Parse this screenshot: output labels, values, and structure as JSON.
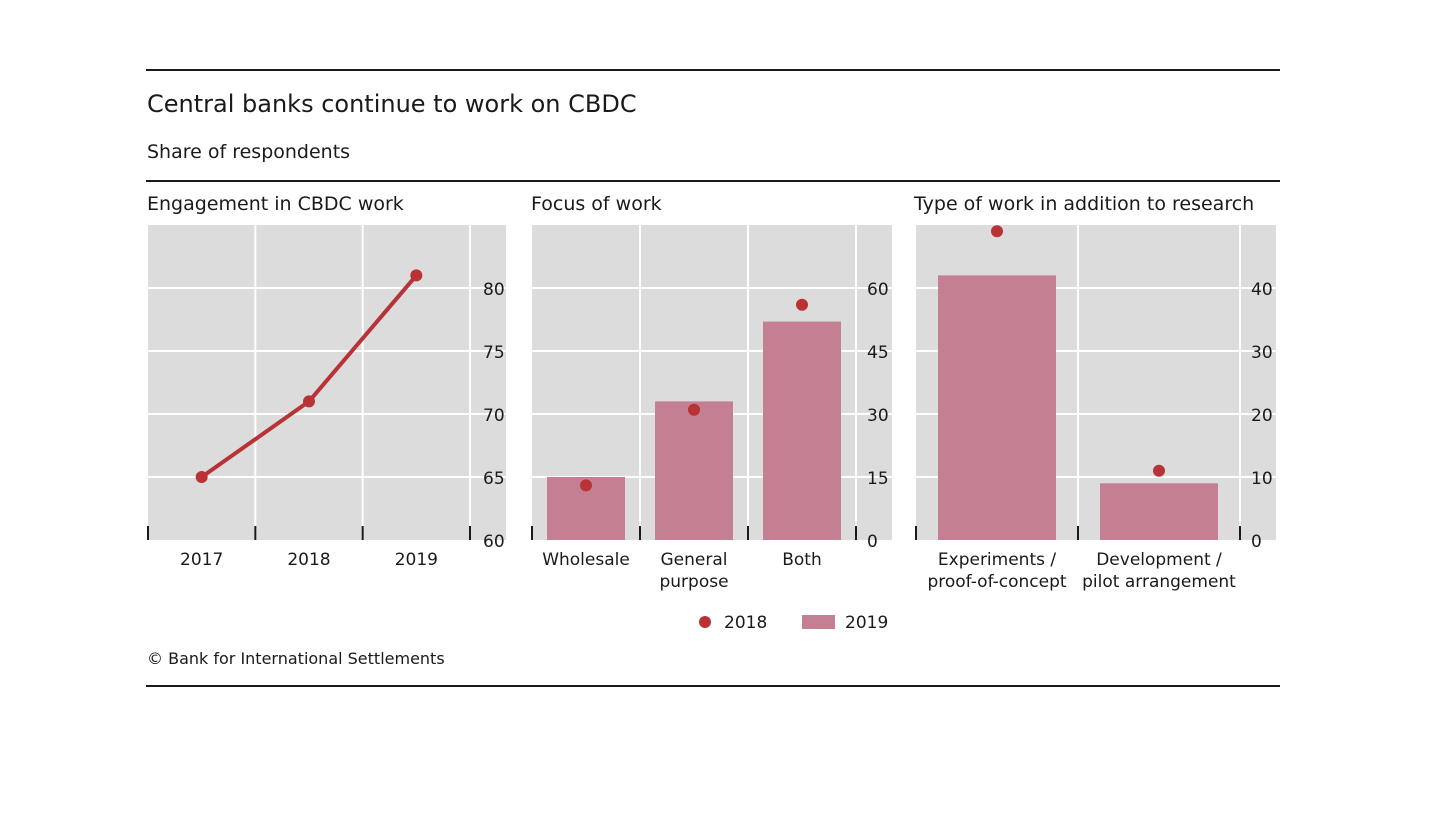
{
  "title": "Central banks continue to work on CBDC",
  "subtitle": "Share of respondents",
  "footer": "© Bank for International Settlements",
  "colors": {
    "plot_bg": "#dcdcdc",
    "grid": "#ffffff",
    "line_2018": "#b83236",
    "bar_2019": "#c47f92",
    "text": "#1a1a1a"
  },
  "legend": {
    "items": [
      {
        "label": "2018",
        "kind": "dot",
        "color": "#b83236"
      },
      {
        "label": "2019",
        "kind": "bar",
        "color": "#c47f92"
      }
    ],
    "placement": "bottom-center"
  },
  "chart_data": [
    {
      "type": "line",
      "title": "Engagement in CBDC work",
      "categories": [
        "2017",
        "2018",
        "2019"
      ],
      "series": [
        {
          "values": [
            65,
            71,
            81
          ],
          "color": "#b83236"
        }
      ],
      "ylim": [
        60,
        85
      ],
      "yticks": [
        60,
        65,
        70,
        75,
        80
      ],
      "ytick_labels": [
        "60",
        "65",
        "70",
        "75",
        "80"
      ],
      "grid": true,
      "yaxis": "right"
    },
    {
      "type": "bar",
      "title": "Focus of work",
      "categories": [
        [
          "Wholesale"
        ],
        [
          "General",
          "purpose"
        ],
        [
          "Both"
        ]
      ],
      "series": [
        {
          "name": "2019",
          "kind": "bar",
          "values": [
            15,
            33,
            52
          ],
          "color": "#c47f92"
        },
        {
          "name": "2018",
          "kind": "dot",
          "values": [
            13,
            31,
            56
          ],
          "color": "#b83236"
        }
      ],
      "ylim": [
        0,
        75
      ],
      "yticks": [
        0,
        15,
        30,
        45,
        60
      ],
      "ytick_labels": [
        "0",
        "15",
        "30",
        "45",
        "60"
      ],
      "grid": true,
      "yaxis": "right"
    },
    {
      "type": "bar",
      "title": "Type of work in addition to research",
      "categories": [
        [
          "Experiments /",
          "proof-of-concept"
        ],
        [
          "Development /",
          "pilot arrangement"
        ]
      ],
      "series": [
        {
          "name": "2019",
          "kind": "bar",
          "values": [
            42,
            9
          ],
          "color": "#c47f92"
        },
        {
          "name": "2018",
          "kind": "dot",
          "values": [
            49,
            11
          ],
          "color": "#b83236"
        }
      ],
      "ylim": [
        0,
        50
      ],
      "yticks": [
        0,
        10,
        20,
        30,
        40
      ],
      "ytick_labels": [
        "0",
        "10",
        "20",
        "30",
        "40"
      ],
      "grid": true,
      "yaxis": "right"
    }
  ]
}
